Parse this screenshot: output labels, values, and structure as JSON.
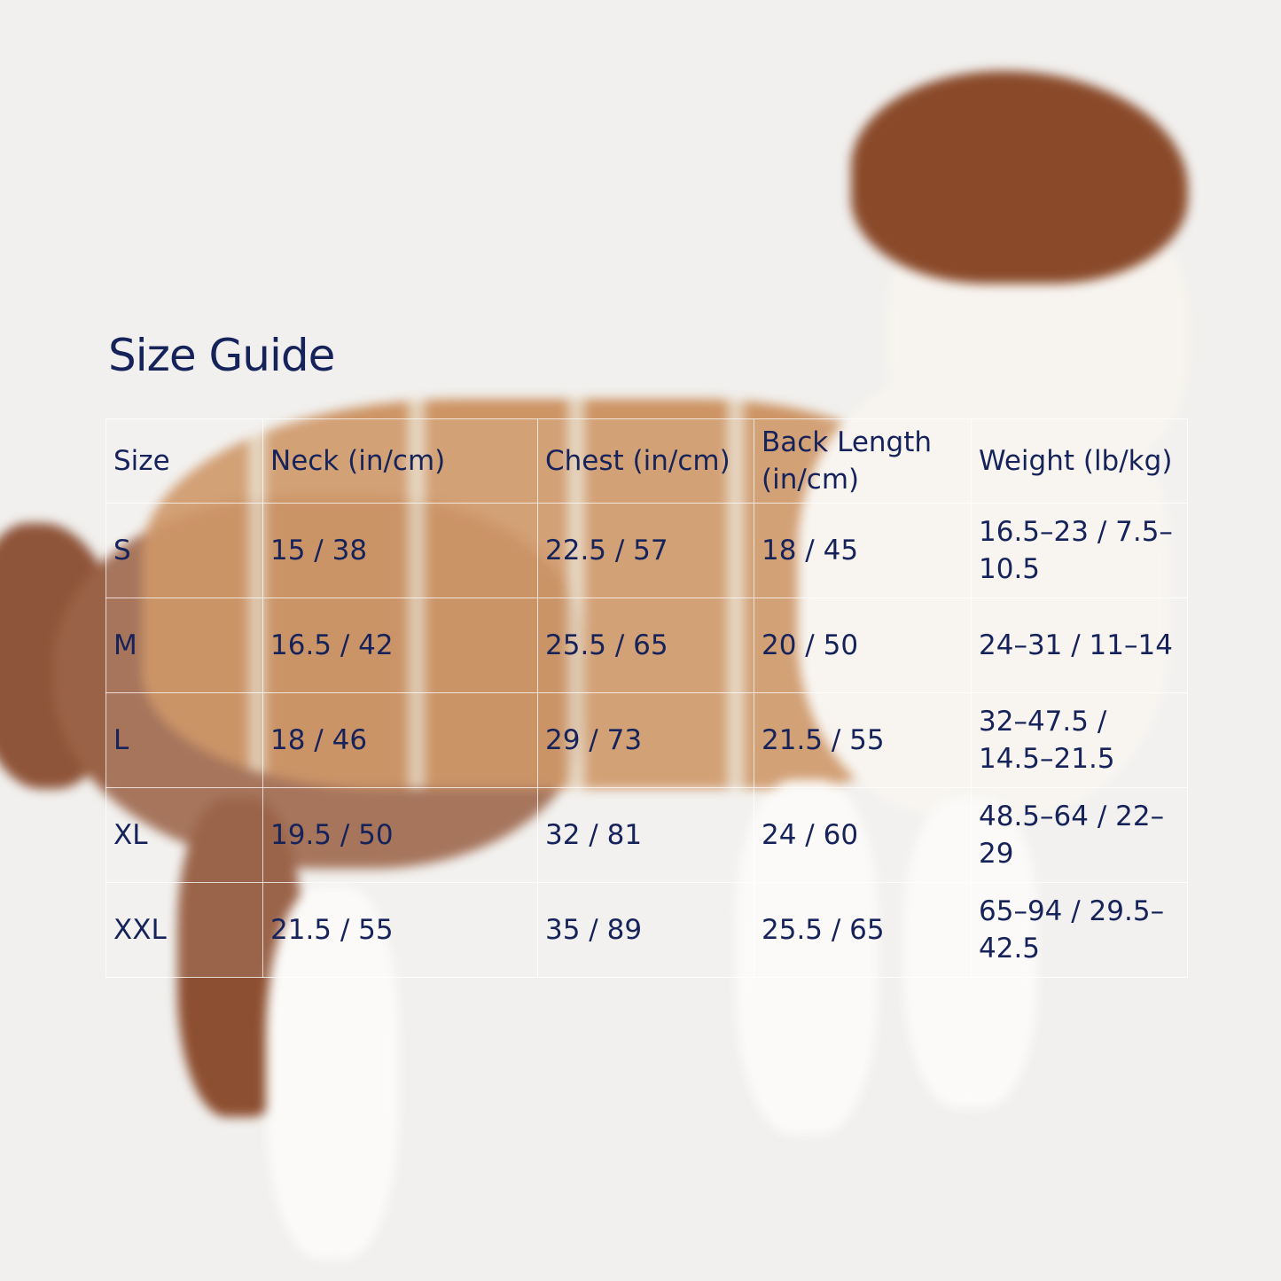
{
  "title": "Size Guide",
  "colors": {
    "text": "#16235a",
    "background": "#f1f0ee",
    "coat": "#c98a55",
    "fur": "#8a4a2a"
  },
  "table": {
    "headers": [
      "Size",
      "Neck (in/cm)",
      "Chest (in/cm)",
      "Back Length (in/cm)",
      "Weight (lb/kg)"
    ],
    "rows": [
      [
        "S",
        "15 / 38",
        "22.5 / 57",
        "18 / 45",
        "16.5–23 / 7.5–10.5"
      ],
      [
        "M",
        "16.5 / 42",
        "25.5 / 65",
        "20 / 50",
        "24–31 / 11–14"
      ],
      [
        "L",
        "18 / 46",
        "29 / 73",
        "21.5 / 55",
        "32–47.5 / 14.5–21.5"
      ],
      [
        "XL",
        "19.5 / 50",
        "32 / 81",
        "24 / 60",
        "48.5–64 / 22–29"
      ],
      [
        "XXL",
        "21.5 / 55",
        "35 / 89",
        "25.5 / 65",
        "65–94 / 29.5–42.5"
      ]
    ]
  }
}
